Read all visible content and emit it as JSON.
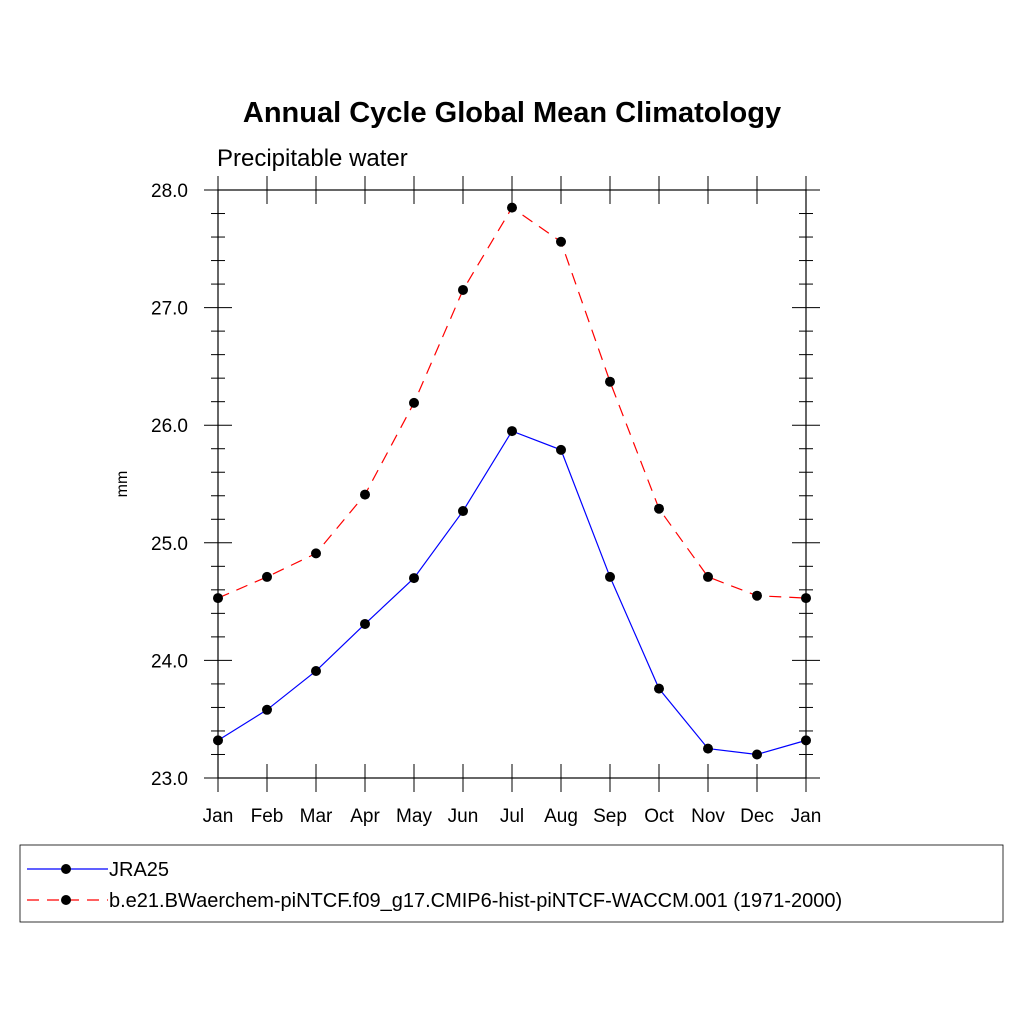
{
  "chart_data": {
    "type": "line",
    "title": "Annual Cycle Global Mean Climatology",
    "subtitle": "Precipitable water",
    "xlabel": "",
    "ylabel": "mm",
    "categories": [
      "Jan",
      "Feb",
      "Mar",
      "Apr",
      "May",
      "Jun",
      "Jul",
      "Aug",
      "Sep",
      "Oct",
      "Nov",
      "Dec",
      "Jan"
    ],
    "ylim": [
      23.0,
      28.0
    ],
    "yticks": [
      "23.0",
      "24.0",
      "25.0",
      "26.0",
      "27.0",
      "28.0"
    ],
    "grid": false,
    "legend_position": "bottom",
    "series": [
      {
        "name": "JRA25",
        "color": "#0000ff",
        "style": "solid",
        "values": [
          23.32,
          23.58,
          23.91,
          24.31,
          24.7,
          25.27,
          25.95,
          25.79,
          24.71,
          23.76,
          23.25,
          23.2,
          23.32
        ]
      },
      {
        "name": "b.e21.BWaerchem-piNTCF.f09_g17.CMIP6-hist-piNTCF-WACCM.001 (1971-2000)",
        "color": "#ff0000",
        "style": "dashed",
        "values": [
          24.53,
          24.71,
          24.91,
          25.41,
          26.19,
          27.15,
          27.85,
          27.56,
          26.37,
          25.29,
          24.71,
          24.55,
          24.53
        ]
      }
    ]
  }
}
